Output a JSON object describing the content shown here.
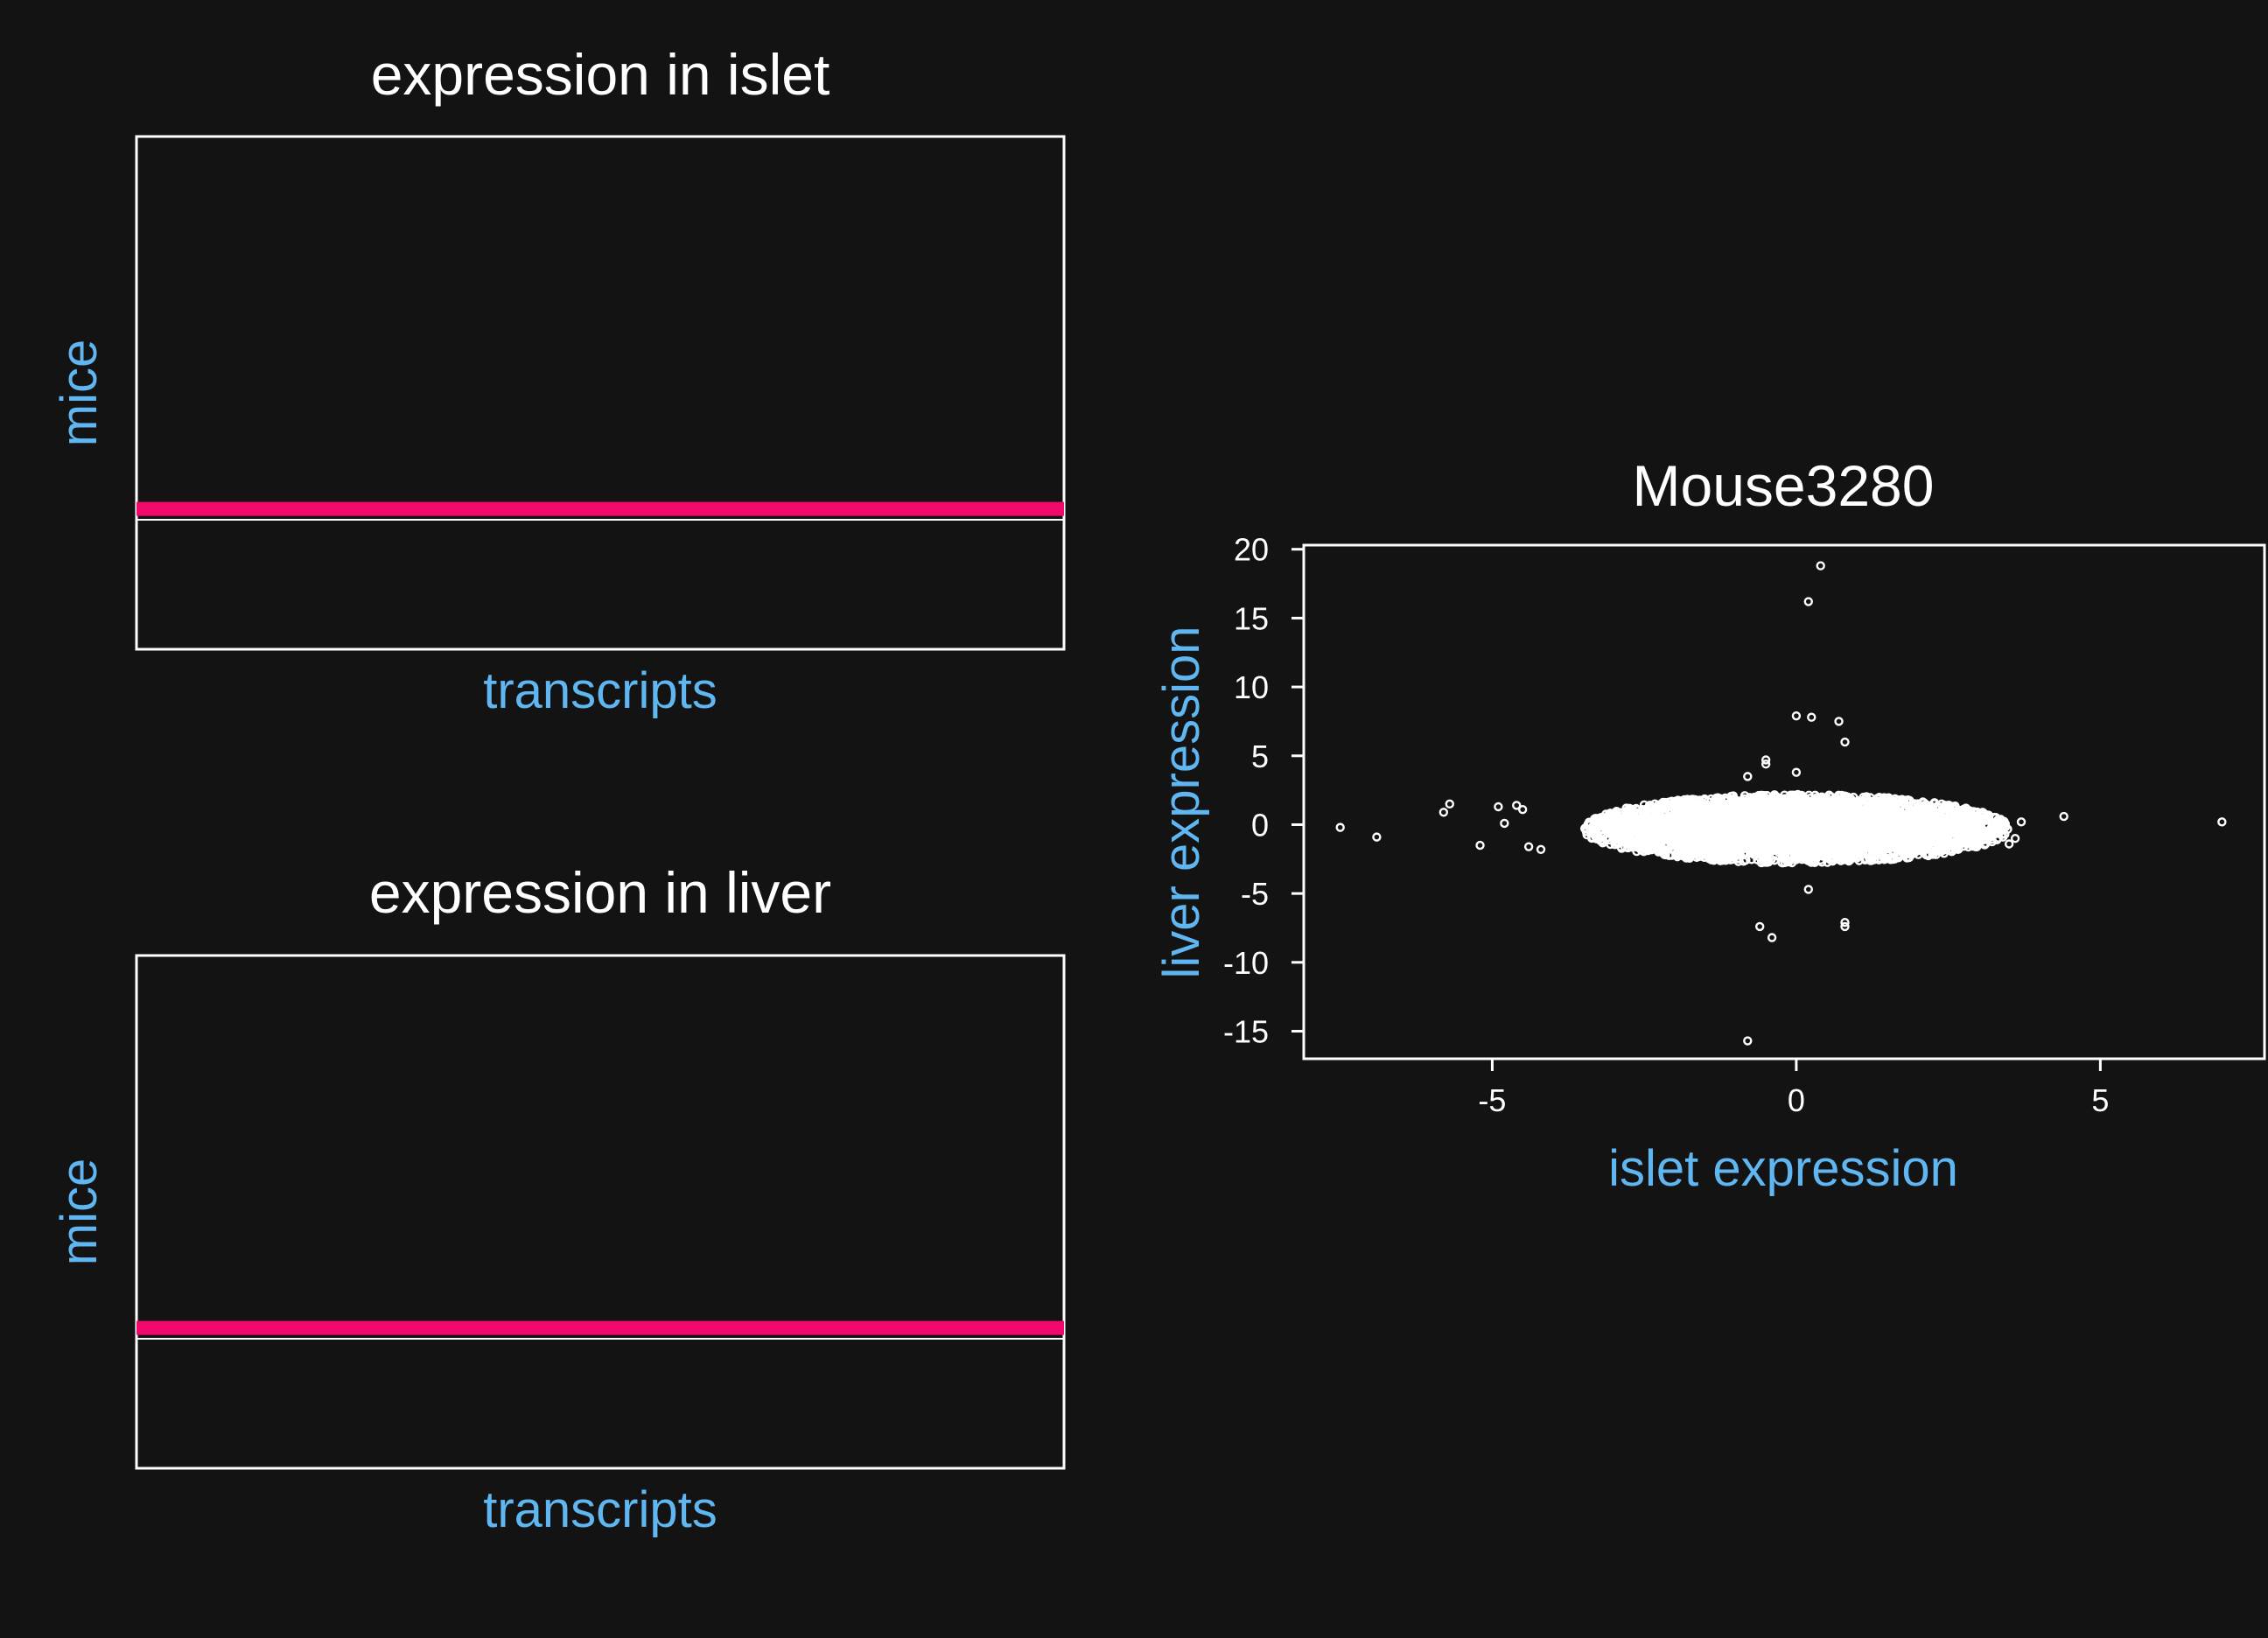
{
  "colors": {
    "background": "#131313",
    "text": "#ffffff",
    "axis_label": "#5fb6f0",
    "highlight": "#f0086a",
    "points": "#ffffff"
  },
  "chart_data": [
    {
      "type": "heatmap",
      "title": "expression in islet",
      "xlabel": "transcripts",
      "ylabel": "mice",
      "highlighted_row_fraction_from_bottom": 0.26
    },
    {
      "type": "heatmap",
      "title": "expression in liver",
      "xlabel": "transcripts",
      "ylabel": "mice",
      "highlighted_row_fraction_from_bottom": 0.26
    },
    {
      "type": "scatter",
      "title": "Mouse3280",
      "xlabel": "islet expression",
      "ylabel": "liver expression",
      "xlim": [
        -8.1,
        7.7
      ],
      "ylim": [
        -17,
        20.3
      ],
      "xticks": [
        -5,
        0,
        5
      ],
      "yticks": [
        -15,
        -10,
        -5,
        0,
        5,
        10,
        15,
        20
      ],
      "grid": false,
      "bulk": {
        "center": [
          0,
          -0.3
        ],
        "x_half_range": 3.5,
        "y_half_range": 2.5,
        "n": 2600
      },
      "points": [
        [
          -7.5,
          -0.2
        ],
        [
          -6.9,
          -0.9
        ],
        [
          -5.8,
          0.9
        ],
        [
          -5.7,
          1.5
        ],
        [
          -5.2,
          -1.5
        ],
        [
          -4.9,
          1.3
        ],
        [
          -4.8,
          0.1
        ],
        [
          -4.6,
          1.4
        ],
        [
          -4.5,
          1.1
        ],
        [
          -4.4,
          -1.6
        ],
        [
          -4.2,
          -1.8
        ],
        [
          4.4,
          0.6
        ],
        [
          7.0,
          0.2
        ],
        [
          3.4,
          -0.9
        ],
        [
          3.3,
          -1.1
        ],
        [
          3.5,
          -1.4
        ],
        [
          3.6,
          -1.0
        ],
        [
          3.7,
          0.2
        ],
        [
          3.1,
          -0.8
        ],
        [
          -0.5,
          4.4
        ],
        [
          -0.5,
          4.7
        ],
        [
          0.0,
          3.8
        ],
        [
          -0.8,
          3.5
        ],
        [
          0.4,
          18.8
        ],
        [
          0.2,
          16.2
        ],
        [
          0.0,
          7.9
        ],
        [
          0.25,
          7.8
        ],
        [
          0.7,
          7.5
        ],
        [
          0.8,
          6.0
        ],
        [
          -0.6,
          -7.4
        ],
        [
          -0.4,
          -8.2
        ],
        [
          0.8,
          -7.1
        ],
        [
          0.8,
          -7.4
        ],
        [
          0.2,
          -4.7
        ],
        [
          -0.8,
          -15.7
        ]
      ]
    }
  ]
}
